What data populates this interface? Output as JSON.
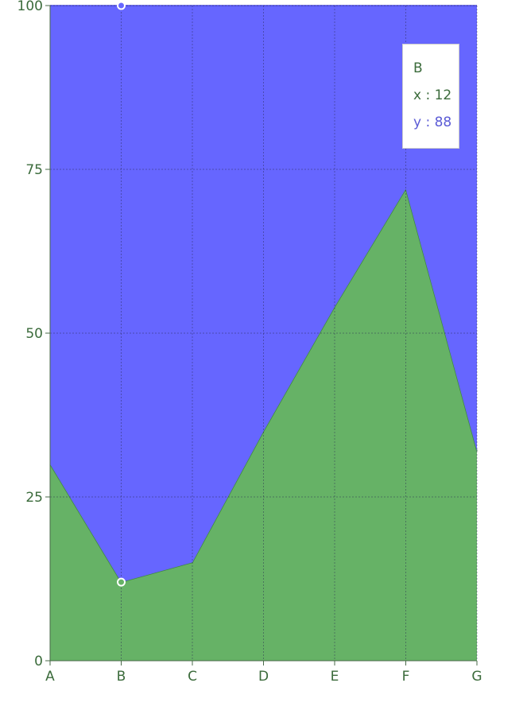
{
  "chart_data": {
    "type": "area",
    "stacked": true,
    "percent": true,
    "categories": [
      "A",
      "B",
      "C",
      "D",
      "E",
      "F",
      "G"
    ],
    "series": [
      {
        "key": "x",
        "values": [
          30,
          12,
          15,
          35,
          54,
          72,
          32
        ],
        "color": "#66b266"
      },
      {
        "key": "y",
        "values": [
          70,
          88,
          85,
          65,
          46,
          28,
          68
        ],
        "color": "#6666ff"
      }
    ],
    "ylim": [
      0,
      100
    ],
    "yticks": [
      0,
      25,
      50,
      75,
      100
    ],
    "grid": true,
    "active_category": "B"
  },
  "tooltip": {
    "title": "B",
    "x_label": "x",
    "x_value": "12",
    "y_label": "y",
    "y_value": "88"
  }
}
